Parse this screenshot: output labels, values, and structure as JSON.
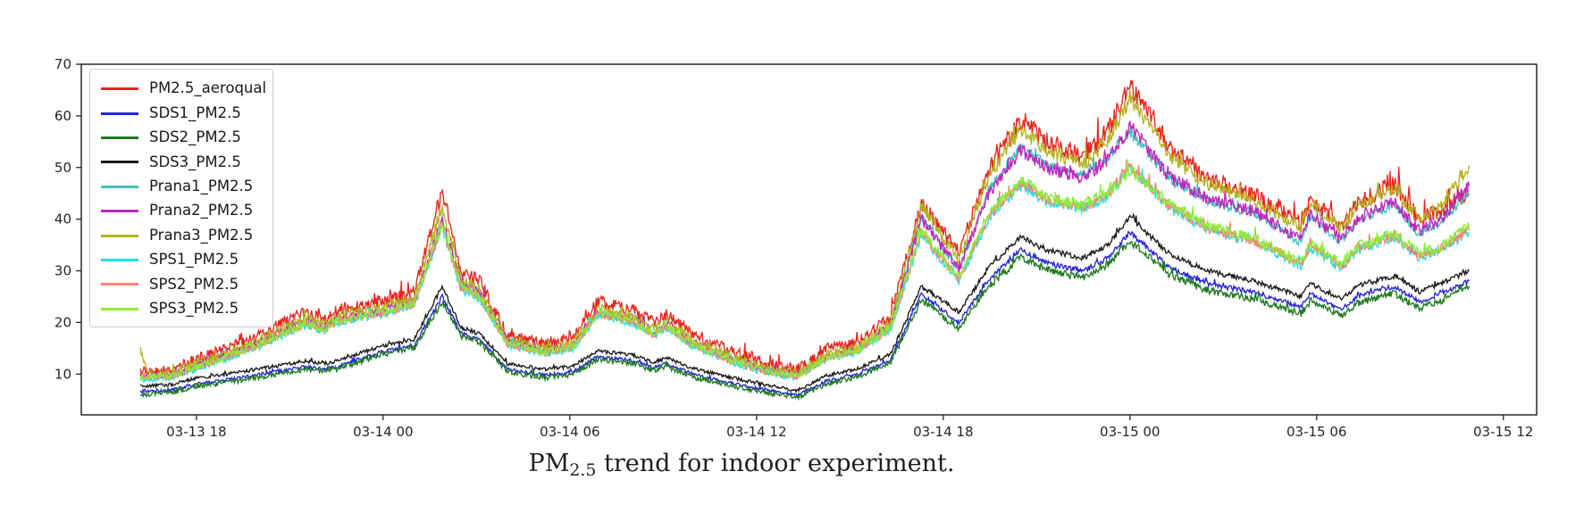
{
  "figure": {
    "caption": {
      "prefix": "PM",
      "subscript": "2.5",
      "suffix": " trend for indoor experiment."
    }
  },
  "colors": {
    "axis": "#262626",
    "plot_border": "#1a1a1a",
    "legend_border": "#cccccc",
    "background": "#ffffff"
  },
  "chart_data": {
    "type": "line",
    "title": "",
    "xlabel": "",
    "ylabel": "",
    "grid": false,
    "legend_position": "upper left",
    "x_axis": {
      "kind": "time",
      "hours_origin": "03-13 12:00",
      "xlim_hours": [
        2.3,
        49.07
      ],
      "tick_hours": [
        6,
        12,
        18,
        24,
        30,
        36,
        42,
        48
      ],
      "tick_labels": [
        "03-13 18",
        "03-14 00",
        "03-14 06",
        "03-14 12",
        "03-14 18",
        "03-15 00",
        "03-15 06",
        "03-15 12"
      ]
    },
    "y_axis": {
      "ylim": [
        2.1,
        70
      ],
      "ticks": [
        10,
        20,
        30,
        40,
        50,
        60,
        70
      ],
      "tick_labels": [
        "10",
        "20",
        "30",
        "40",
        "50",
        "60",
        "70"
      ]
    },
    "time_keypoints_hours": [
      4.2,
      4.45,
      5.2,
      6,
      7,
      8,
      9.5,
      10.1,
      10.5,
      12,
      13,
      13.9,
      14.5,
      15.1,
      16,
      17.2,
      18.1,
      18.9,
      20,
      20.7,
      21.1,
      22,
      23.2,
      24.3,
      25.3,
      26.3,
      27.2,
      28.3,
      29.3,
      30.5,
      31.5,
      32.5,
      33.3,
      34.5,
      35.3,
      36,
      37.3,
      38.5,
      40,
      41.5,
      41.8,
      42.8,
      43.3,
      44.5,
      45.3,
      46,
      46.9
    ],
    "series": [
      {
        "name": "PM2.5_aeroqual",
        "color": "#e8261d",
        "noise": 1.25,
        "values": [
          10.5,
          10.5,
          11,
          13,
          15,
          17.5,
          22,
          20.5,
          22.5,
          24,
          26,
          46,
          30,
          28,
          17.5,
          16,
          17,
          24,
          22.5,
          20,
          21.5,
          17.5,
          14.5,
          12,
          11,
          15,
          16,
          21,
          43,
          33.5,
          50,
          59,
          55,
          52,
          57,
          66,
          54,
          48,
          44.5,
          39,
          44,
          38.5,
          43,
          47,
          40,
          42,
          45
        ]
      },
      {
        "name": "SDS1_PM2.5",
        "color": "#2424dd",
        "noise": 0.45,
        "values": [
          6.6,
          6.6,
          6.9,
          8.1,
          8.9,
          9.9,
          11.4,
          10.9,
          11.4,
          14.4,
          15.6,
          25,
          17.9,
          16.7,
          10.9,
          9.8,
          10.4,
          13.4,
          12.6,
          11.2,
          12,
          9.9,
          8.2,
          6.9,
          6,
          8.7,
          9.8,
          12.7,
          25.5,
          20,
          28.5,
          34,
          31.5,
          30,
          32.5,
          37.5,
          30.5,
          27.5,
          25.8,
          23,
          25.5,
          22.5,
          25,
          27,
          24,
          25.5,
          28
        ]
      },
      {
        "name": "SDS2_PM2.5",
        "color": "#1c7a1c",
        "noise": 0.7,
        "values": [
          6.1,
          6.1,
          6.4,
          7.6,
          8.4,
          9.4,
          10.9,
          10.4,
          10.9,
          13.9,
          15.1,
          24,
          17.4,
          16.2,
          10.4,
          9.3,
          9.9,
          12.9,
          12.1,
          10.7,
          11.5,
          9.4,
          7.7,
          6.4,
          5.5,
          8.2,
          9.3,
          12.2,
          24.3,
          18.7,
          27.2,
          32.7,
          30.2,
          28.7,
          31.2,
          35.7,
          29.2,
          26.2,
          24.5,
          21.7,
          24.2,
          21.2,
          23.7,
          25.7,
          22.7,
          24.2,
          27
        ]
      },
      {
        "name": "SDS3_PM2.5",
        "color": "#1a1a1a",
        "noise": 0.45,
        "values": [
          7.7,
          7.7,
          8,
          9.2,
          10,
          11,
          12.5,
          12,
          12.5,
          15.5,
          16.7,
          27,
          19,
          17.8,
          12,
          10.9,
          11.5,
          14.5,
          13.7,
          12.3,
          13.1,
          11,
          9.3,
          7.9,
          6.8,
          9.8,
          10.9,
          13.8,
          27,
          22,
          31,
          36.5,
          34,
          32.5,
          35,
          40.5,
          33,
          30,
          28,
          25,
          27.5,
          24.5,
          27,
          29,
          26,
          27.5,
          30
        ]
      },
      {
        "name": "Prana1_PM2.5",
        "color": "#3fc1bd",
        "noise": 0.7,
        "values": [
          9.3,
          9.3,
          9.6,
          11.4,
          13.4,
          15.7,
          20,
          18.7,
          20.5,
          22,
          23.9,
          39,
          27,
          25.3,
          15.9,
          14.3,
          15.3,
          21.9,
          20.4,
          17.9,
          19.4,
          15.7,
          12.8,
          10.5,
          9.6,
          13.3,
          14.5,
          19.2,
          40.5,
          30,
          46,
          54,
          50.5,
          48.5,
          52,
          57,
          47.5,
          43.5,
          41,
          35.5,
          40.5,
          35.5,
          39.5,
          43,
          37,
          39.5,
          45.5
        ]
      },
      {
        "name": "Prana2_PM2.5",
        "color": "#bf26bf",
        "noise": 0.95,
        "values": [
          9.6,
          9.6,
          9.9,
          11.7,
          13.7,
          16,
          20.3,
          19,
          20.8,
          22.3,
          24.2,
          40,
          27.5,
          25.8,
          16.2,
          14.6,
          15.6,
          22.2,
          20.7,
          18.2,
          19.7,
          16,
          13.1,
          10.8,
          9.9,
          13.6,
          14.8,
          19.5,
          40,
          30.5,
          45.5,
          53.5,
          50,
          48,
          51.5,
          58,
          48,
          44,
          41.5,
          36,
          41,
          36,
          40,
          43.5,
          37.5,
          40,
          46.5
        ]
      },
      {
        "name": "Prana3_PM2.5",
        "color": "#b3b31f",
        "noise": 0.95,
        "values": [
          14.5,
          10.2,
          10.3,
          12.2,
          14.2,
          16.5,
          21,
          19.5,
          21.3,
          23,
          24.8,
          42.5,
          28.5,
          26.5,
          16.5,
          15,
          16,
          22.7,
          21.2,
          18.7,
          20.2,
          16.4,
          13.5,
          11.2,
          10.3,
          14,
          15.2,
          20,
          42.5,
          32,
          48.5,
          57.5,
          53.5,
          50.5,
          55.5,
          63.5,
          52,
          46.8,
          43.8,
          38.2,
          43.2,
          38,
          42.5,
          45.8,
          39.8,
          42.8,
          50.5
        ]
      },
      {
        "name": "SPS1_PM2.5",
        "color": "#22e0ef",
        "noise": 0.8,
        "values": [
          9,
          9,
          9.3,
          11,
          13,
          15.3,
          19.5,
          18.2,
          20,
          21.5,
          23.4,
          38.5,
          26.3,
          24.6,
          15.5,
          13.9,
          14.9,
          21.4,
          19.9,
          17.4,
          18.9,
          15.2,
          12.3,
          10.2,
          9.3,
          13,
          14.1,
          18.5,
          37,
          28,
          40.5,
          46.5,
          43.5,
          42,
          44.5,
          50,
          42,
          38,
          35.5,
          31,
          34.5,
          30.5,
          34,
          36.5,
          32.5,
          34,
          37.5
        ]
      },
      {
        "name": "SPS2_PM2.5",
        "color": "#f8856d",
        "noise": 0.8,
        "values": [
          9.2,
          9.2,
          9.5,
          11.2,
          13.2,
          15.5,
          19.7,
          18.4,
          20.2,
          21.7,
          23.6,
          39,
          26.5,
          24.8,
          15.7,
          14.1,
          15.1,
          21.6,
          20.1,
          17.6,
          19.1,
          15.4,
          12.5,
          10.4,
          9.5,
          13.2,
          14.3,
          18.7,
          37.3,
          28.3,
          40.8,
          47,
          44,
          42.3,
          44.8,
          50.3,
          42.3,
          38.3,
          35.8,
          31.3,
          34.8,
          30.8,
          34.3,
          36.8,
          32.8,
          34.3,
          37.8
        ]
      },
      {
        "name": "SPS3_PM2.5",
        "color": "#8ded38",
        "noise": 0.9,
        "values": [
          9.4,
          9.4,
          9.7,
          11.4,
          13.4,
          15.7,
          19.9,
          18.6,
          20.4,
          21.9,
          23.8,
          39.3,
          26.7,
          25,
          15.9,
          14.3,
          15.3,
          21.8,
          20.3,
          17.8,
          19.3,
          15.6,
          12.7,
          10.6,
          9.7,
          13.4,
          14.5,
          19,
          37.7,
          28.7,
          41.2,
          47.4,
          44.4,
          42.7,
          45.2,
          49.7,
          42.7,
          38.7,
          36.2,
          31.7,
          35.2,
          31.2,
          34.7,
          37.2,
          33.2,
          34.7,
          38.7
        ]
      }
    ]
  }
}
